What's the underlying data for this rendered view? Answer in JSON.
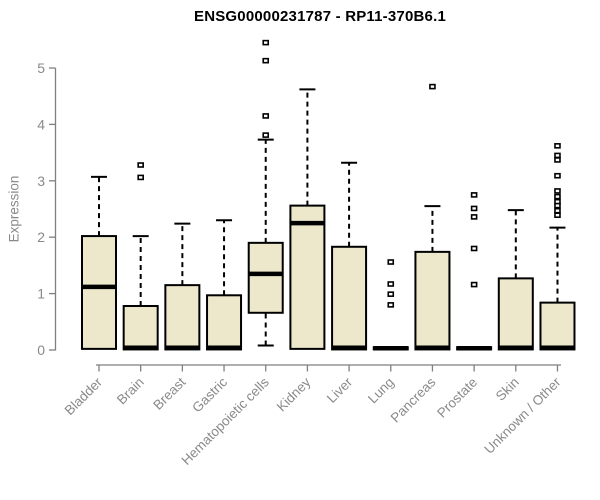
{
  "chart_data": {
    "type": "box",
    "title": "ENSG00000231787 - RP11-370B6.1",
    "xlabel": "",
    "ylabel": "Expression",
    "ylim": [
      0,
      5.6
    ],
    "yticks": [
      0,
      1,
      2,
      3,
      4,
      5
    ],
    "grid": false,
    "legend": "none",
    "categories": [
      "Bladder",
      "Brain",
      "Breast",
      "Gastric",
      "Hematopoietic cells",
      "Kidney",
      "Liver",
      "Lung",
      "Pancreas",
      "Prostate",
      "Skin",
      "Unknown / Other"
    ],
    "series": [
      {
        "name": "Bladder",
        "whisker_low": 0.02,
        "q1": 0.02,
        "median": 1.12,
        "q3": 2.02,
        "whisker_high": 3.07,
        "outliers": []
      },
      {
        "name": "Brain",
        "whisker_low": 0.01,
        "q1": 0.01,
        "median": 0.04,
        "q3": 0.78,
        "whisker_high": 2.02,
        "outliers": [
          3.28,
          3.06
        ]
      },
      {
        "name": "Breast",
        "whisker_low": 0.01,
        "q1": 0.01,
        "median": 0.04,
        "q3": 1.15,
        "whisker_high": 2.24,
        "outliers": []
      },
      {
        "name": "Gastric",
        "whisker_low": 0.01,
        "q1": 0.01,
        "median": 0.04,
        "q3": 0.97,
        "whisker_high": 2.3,
        "outliers": []
      },
      {
        "name": "Hematopoietic cells",
        "whisker_low": 0.08,
        "q1": 0.66,
        "median": 1.35,
        "q3": 1.9,
        "whisker_high": 3.73,
        "outliers": [
          5.45,
          5.13,
          4.15,
          3.81
        ]
      },
      {
        "name": "Kidney",
        "whisker_low": 0.02,
        "q1": 0.02,
        "median": 2.25,
        "q3": 2.56,
        "whisker_high": 4.62,
        "outliers": []
      },
      {
        "name": "Liver",
        "whisker_low": 0.01,
        "q1": 0.01,
        "median": 0.04,
        "q3": 1.83,
        "whisker_high": 3.32,
        "outliers": []
      },
      {
        "name": "Lung",
        "whisker_low": 0.01,
        "q1": 0.01,
        "median": 0.03,
        "q3": 0.05,
        "whisker_high": 0.05,
        "outliers": [
          1.56,
          1.17,
          0.99,
          0.8
        ]
      },
      {
        "name": "Pancreas",
        "whisker_low": 0.01,
        "q1": 0.01,
        "median": 0.04,
        "q3": 1.74,
        "whisker_high": 2.55,
        "outliers": [
          4.67
        ]
      },
      {
        "name": "Prostate",
        "whisker_low": 0.01,
        "q1": 0.01,
        "median": 0.03,
        "q3": 0.05,
        "whisker_high": 0.05,
        "outliers": [
          2.75,
          2.51,
          2.36,
          1.8,
          1.16
        ]
      },
      {
        "name": "Skin",
        "whisker_low": 0.01,
        "q1": 0.01,
        "median": 0.04,
        "q3": 1.27,
        "whisker_high": 2.48,
        "outliers": []
      },
      {
        "name": "Unknown / Other",
        "whisker_low": 0.01,
        "q1": 0.01,
        "median": 0.04,
        "q3": 0.84,
        "whisker_high": 2.17,
        "outliers": [
          3.62,
          3.45,
          3.37,
          3.09,
          2.82,
          2.72,
          2.63,
          2.56,
          2.47,
          2.39
        ]
      }
    ],
    "colors": {
      "box_fill": "#EDE8CC",
      "box_stroke": "#000000",
      "median": "#000000",
      "whisker": "#000000",
      "outlier_stroke": "#000000",
      "outlier_fill": "#FFFFFF",
      "axis": "#7F7F7F",
      "tick_label": "#8A8A8A",
      "title": "#000000",
      "background": "#FFFFFF"
    }
  }
}
